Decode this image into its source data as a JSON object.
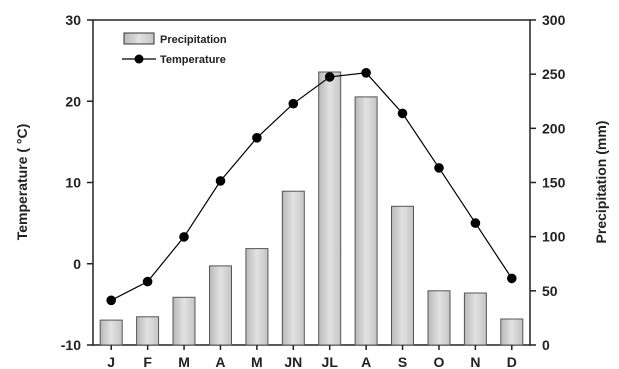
{
  "chart_data": {
    "type": "bar+line",
    "categories": [
      "J",
      "F",
      "M",
      "A",
      "M",
      "JN",
      "JL",
      "A",
      "S",
      "O",
      "N",
      "D"
    ],
    "series": [
      {
        "name": "Precipitation",
        "kind": "bar",
        "axis": "right",
        "unit": "mm",
        "values": [
          23,
          26,
          44,
          73,
          89,
          142,
          252,
          229,
          128,
          50,
          48,
          24
        ],
        "color": "#d4d4d4"
      },
      {
        "name": "Temperature",
        "kind": "line",
        "axis": "left",
        "unit": "°C",
        "values": [
          -4.5,
          -2.2,
          3.3,
          10.2,
          15.5,
          19.7,
          23.0,
          23.5,
          18.5,
          11.8,
          5.0,
          -1.8
        ],
        "color": "#000000"
      }
    ],
    "ylabel_left": "Temperature ( °C)",
    "ylabel_right": "Precipitation (mm)",
    "ylim_left": [
      -10,
      30
    ],
    "yticks_left": [
      "30",
      "20",
      "10",
      "0",
      "-10"
    ],
    "ylim_right": [
      0,
      300
    ],
    "yticks_right": [
      "300",
      "250",
      "200",
      "150",
      "100",
      "50",
      "0"
    ],
    "legend_position": "top-left",
    "grid": false
  }
}
